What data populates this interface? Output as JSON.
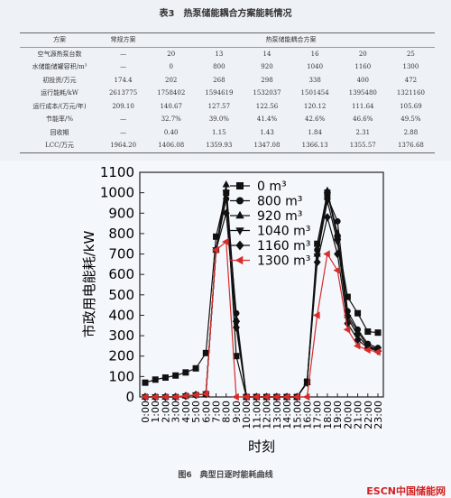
{
  "table": {
    "title": "表3　热泵储能耦合方案能耗情况",
    "header": [
      "方案",
      "常规方案",
      "热泵储能耦合方案"
    ],
    "rows": [
      [
        "空气源热泵台数",
        "—",
        "20",
        "13",
        "14",
        "16",
        "20",
        "25"
      ],
      [
        "水储能储罐容积/m³",
        "—",
        "0",
        "800",
        "920",
        "1040",
        "1160",
        "1300"
      ],
      [
        "初投资/万元",
        "174.4",
        "202",
        "268",
        "298",
        "338",
        "400",
        "472"
      ],
      [
        "运行能耗/kW",
        "2613775",
        "1758402",
        "1594619",
        "1532037",
        "1501454",
        "1395480",
        "1321160"
      ],
      [
        "运行成本/(万元/年)",
        "209.10",
        "140.67",
        "127.57",
        "122.56",
        "120.12",
        "111.64",
        "105.69"
      ],
      [
        "节能率/%",
        "—",
        "32.7%",
        "39.0%",
        "41.4%",
        "42.6%",
        "46.6%",
        "49.5%"
      ],
      [
        "回收期",
        "—",
        "0.40",
        "1.15",
        "1.43",
        "1.84",
        "2.31",
        "2.88"
      ],
      [
        "LCC/万元",
        "1964.20",
        "1406.08",
        "1359.93",
        "1347.08",
        "1366.13",
        "1355.57",
        "1376.68"
      ]
    ]
  },
  "chart_data": {
    "type": "line",
    "x_label": "时刻",
    "y_label": "市政用电能耗/kW",
    "categories": [
      "0:00",
      "1:00",
      "2:00",
      "3:00",
      "4:00",
      "5:00",
      "6:00",
      "7:00",
      "8:00",
      "9:00",
      "10:00",
      "11:00",
      "12:00",
      "13:00",
      "14:00",
      "15:00",
      "16:00",
      "17:00",
      "18:00",
      "19:00",
      "20:00",
      "21:00",
      "22:00",
      "23:00"
    ],
    "ylim": [
      0,
      1100
    ],
    "yticks": [
      0,
      100,
      200,
      300,
      400,
      500,
      600,
      700,
      800,
      900,
      1000,
      1100
    ],
    "legend": "upper right",
    "series": [
      {
        "name": "0 m³",
        "color": "#111111",
        "marker": "square",
        "values": [
          70,
          85,
          95,
          105,
          120,
          140,
          215,
          785,
          1000,
          200,
          0,
          0,
          0,
          0,
          0,
          0,
          75,
          750,
          1000,
          780,
          490,
          410,
          320,
          315
        ]
      },
      {
        "name": "800 m³",
        "color": "#111111",
        "marker": "circle",
        "values": [
          0,
          0,
          0,
          0,
          5,
          10,
          15,
          720,
          970,
          410,
          0,
          0,
          0,
          0,
          0,
          0,
          70,
          720,
          980,
          860,
          420,
          330,
          260,
          240
        ]
      },
      {
        "name": "920 m³",
        "color": "#111111",
        "marker": "triangle-up",
        "values": [
          0,
          0,
          0,
          0,
          5,
          10,
          15,
          720,
          1040,
          380,
          0,
          0,
          0,
          0,
          0,
          0,
          70,
          700,
          1010,
          800,
          400,
          320,
          250,
          235
        ]
      },
      {
        "name": "1040 m³",
        "color": "#111111",
        "marker": "triangle-down",
        "values": [
          0,
          0,
          0,
          0,
          5,
          10,
          15,
          720,
          1000,
          360,
          0,
          0,
          0,
          0,
          0,
          0,
          70,
          690,
          960,
          760,
          390,
          300,
          245,
          230
        ]
      },
      {
        "name": "1160 m³",
        "color": "#111111",
        "marker": "diamond",
        "values": [
          0,
          0,
          0,
          0,
          5,
          10,
          15,
          720,
          900,
          340,
          0,
          0,
          0,
          0,
          0,
          0,
          70,
          660,
          880,
          700,
          360,
          280,
          240,
          225
        ]
      },
      {
        "name": "1300 m³",
        "color": "#d62c2c",
        "marker": "triangle-left",
        "values": [
          0,
          0,
          0,
          0,
          5,
          10,
          15,
          720,
          760,
          0,
          0,
          0,
          0,
          0,
          0,
          0,
          0,
          400,
          700,
          620,
          330,
          250,
          230,
          220
        ]
      }
    ]
  },
  "caption": "图6　典型日逐时能耗曲线",
  "watermark": "ESCN中国储能网"
}
